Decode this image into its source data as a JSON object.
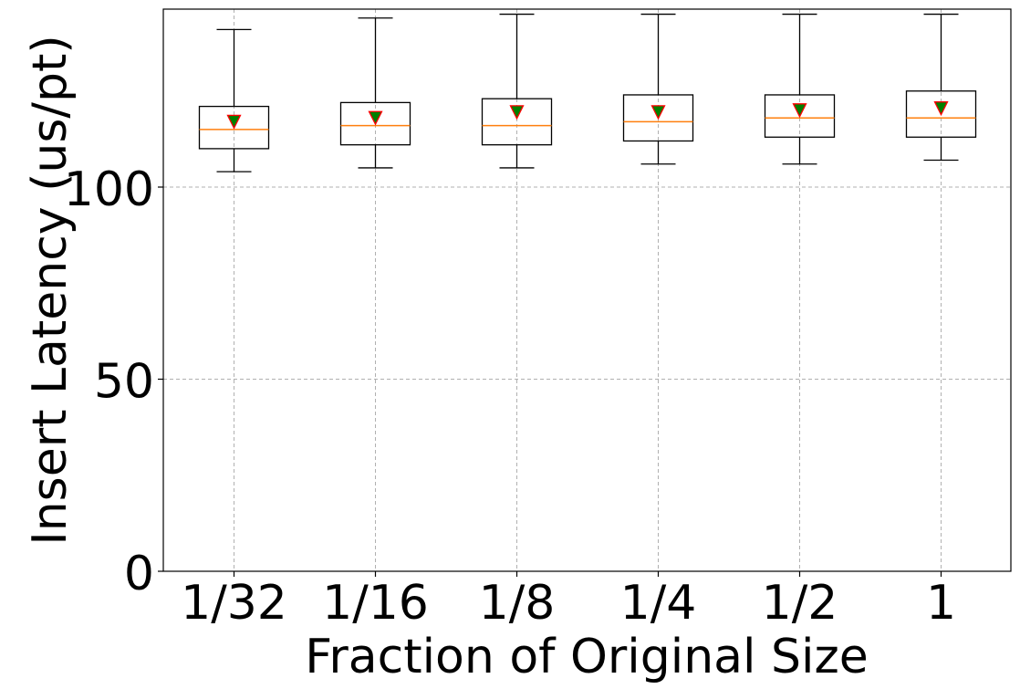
{
  "chart_data": {
    "type": "box",
    "categories": [
      "1/32",
      "1/16",
      "1/8",
      "1/4",
      "1/2",
      "1"
    ],
    "xlabel": "Fraction of Original Size",
    "ylabel": "Insert Latency (us/pt)",
    "ylim": [
      0,
      146
    ],
    "yticks": [
      0,
      50,
      100
    ],
    "grid": true,
    "boxes": [
      {
        "category": "1/32",
        "whisker_low": 104,
        "q1": 110,
        "median": 115,
        "q3": 121,
        "whisker_high": 141,
        "mean": 117
      },
      {
        "category": "1/16",
        "whisker_low": 105,
        "q1": 111,
        "median": 116,
        "q3": 122,
        "whisker_high": 144,
        "mean": 118
      },
      {
        "category": "1/8",
        "whisker_low": 105,
        "q1": 111,
        "median": 116,
        "q3": 123,
        "whisker_high": 145,
        "mean": 119.5
      },
      {
        "category": "1/4",
        "whisker_low": 106,
        "q1": 112,
        "median": 117,
        "q3": 124,
        "whisker_high": 145,
        "mean": 119.5
      },
      {
        "category": "1/2",
        "whisker_low": 106,
        "q1": 113,
        "median": 118,
        "q3": 124,
        "whisker_high": 145,
        "mean": 120
      },
      {
        "category": "1",
        "whisker_low": 107,
        "q1": 113,
        "median": 118,
        "q3": 125,
        "whisker_high": 145,
        "mean": 120.5
      }
    ],
    "colors": {
      "box": "#000000",
      "median": "#ff7f0e",
      "mean_fill": "#008000",
      "mean_edge": "#ff0000",
      "grid": "#b0b0b0"
    }
  }
}
